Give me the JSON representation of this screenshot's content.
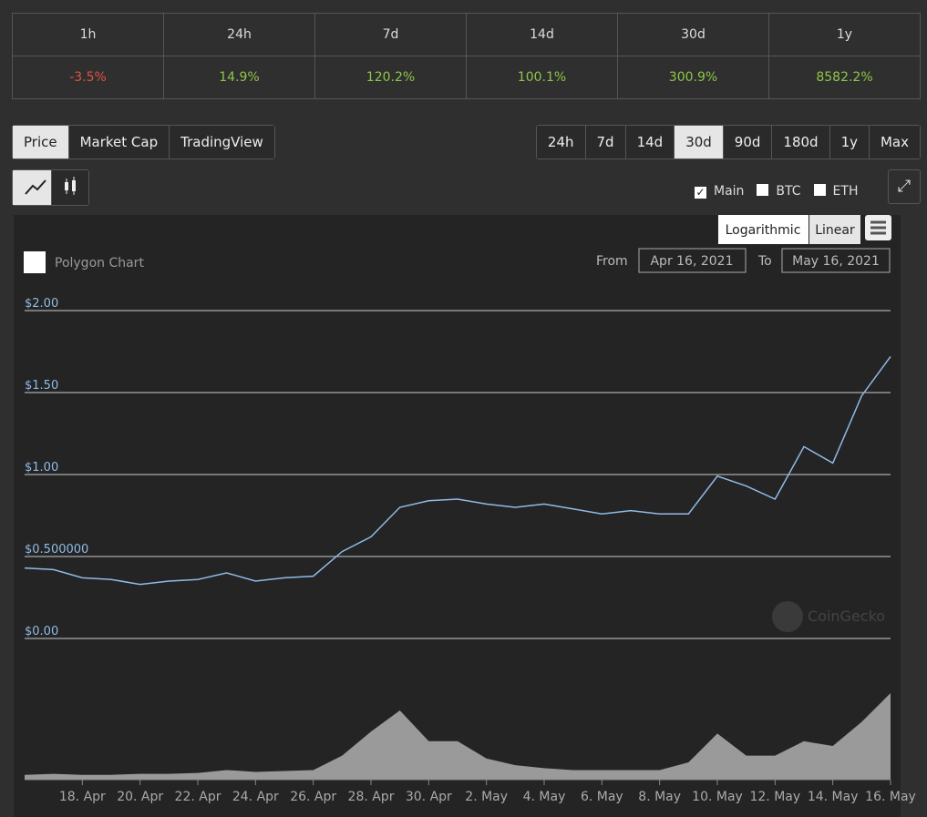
{
  "performance": {
    "periods": [
      "1h",
      "24h",
      "7d",
      "14d",
      "30d",
      "1y"
    ],
    "changes": [
      "-3.5%",
      "14.9%",
      "120.2%",
      "100.1%",
      "300.9%",
      "8582.2%"
    ]
  },
  "tabs": [
    "Price",
    "Market Cap",
    "TradingView"
  ],
  "ranges": [
    "24h",
    "7d",
    "14d",
    "30d",
    "90d",
    "180d",
    "1y",
    "Max"
  ],
  "toggles": [
    "Main",
    "BTC",
    "ETH"
  ],
  "scale_buttons": [
    "Logarithmic",
    "Linear"
  ],
  "chart_header": {
    "title": "Polygon Chart",
    "from_label": "From",
    "from_date": "Apr 16, 2021",
    "to_label": "To",
    "to_date": "May 16, 2021"
  },
  "watermark": "CoinGecko",
  "chart_data": {
    "type": "line",
    "color": "#8fbbe6",
    "volume_color": "#9a9a9a",
    "x": [
      null,
      null,
      "18. Apr",
      null,
      "20. Apr",
      null,
      "22. Apr",
      null,
      "24. Apr",
      null,
      "26. Apr",
      null,
      "28. Apr",
      null,
      "30. Apr",
      null,
      "2. May",
      null,
      "4. May",
      null,
      "6. May",
      null,
      "8. May",
      null,
      "10. May",
      null,
      "12. May",
      null,
      "14. May",
      null,
      "16. May"
    ],
    "values": [
      0.43,
      0.42,
      0.37,
      0.36,
      0.33,
      0.35,
      0.36,
      0.4,
      0.35,
      0.37,
      0.38,
      0.53,
      0.62,
      0.8,
      0.84,
      0.85,
      0.82,
      0.8,
      0.82,
      0.79,
      0.76,
      0.78,
      0.76,
      0.76,
      0.99,
      0.93,
      0.85,
      1.17,
      1.07,
      1.48,
      1.72
    ],
    "volume": [
      5,
      6,
      5,
      5,
      6,
      6,
      7,
      10,
      8,
      9,
      10,
      25,
      50,
      72,
      40,
      40,
      22,
      15,
      12,
      10,
      10,
      10,
      10,
      18,
      48,
      25,
      25,
      40,
      35,
      60,
      90
    ],
    "ylim": [
      0,
      2
    ],
    "yticks": [
      {
        "value": 0,
        "label": "$0.00"
      },
      {
        "value": 0.5,
        "label": "$0.500000"
      },
      {
        "value": 1,
        "label": "$1.00"
      },
      {
        "value": 1.5,
        "label": "$1.50"
      },
      {
        "value": 2,
        "label": "$2.00"
      }
    ],
    "grid": true
  }
}
